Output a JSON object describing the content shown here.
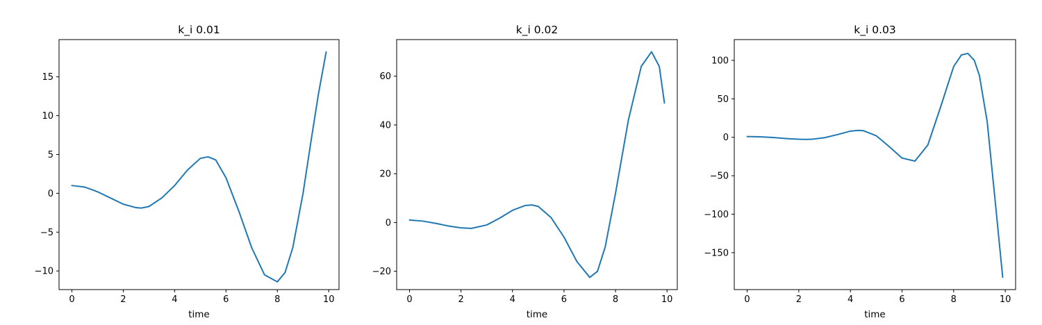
{
  "figure": {
    "line_color": "#1f77b4"
  },
  "chart_data": [
    {
      "type": "line",
      "title": "k_i 0.01",
      "xlabel": "time",
      "ylabel": "",
      "xlim": [
        -0.5,
        10.4
      ],
      "ylim": [
        -12.4,
        19.8
      ],
      "xticks": [
        0,
        2,
        4,
        6,
        8,
        10
      ],
      "yticks": [
        -10,
        -5,
        0,
        5,
        10,
        15
      ],
      "grid": false,
      "series": [
        {
          "x": [
            0,
            0.5,
            1,
            1.5,
            2,
            2.5,
            2.7,
            3,
            3.5,
            4,
            4.5,
            5,
            5.3,
            5.6,
            6,
            6.5,
            7,
            7.5,
            8,
            8.3,
            8.6,
            9,
            9.3,
            9.6,
            9.9
          ],
          "y": [
            1.0,
            0.8,
            0.2,
            -0.6,
            -1.4,
            -1.85,
            -1.9,
            -1.7,
            -0.6,
            1.0,
            3.0,
            4.5,
            4.7,
            4.3,
            2.0,
            -2.3,
            -7.0,
            -10.5,
            -11.4,
            -10.2,
            -7.0,
            0.0,
            6.5,
            12.8,
            18.2
          ]
        }
      ]
    },
    {
      "type": "line",
      "title": "k_i 0.02",
      "xlabel": "time",
      "ylabel": "",
      "xlim": [
        -0.5,
        10.4
      ],
      "ylim": [
        -27.5,
        75.0
      ],
      "xticks": [
        0,
        2,
        4,
        6,
        8,
        10
      ],
      "yticks": [
        -20,
        0,
        20,
        40,
        60
      ],
      "grid": false,
      "series": [
        {
          "x": [
            0,
            0.5,
            1,
            1.5,
            2,
            2.4,
            3,
            3.5,
            4,
            4.5,
            4.75,
            5,
            5.5,
            6,
            6.5,
            7,
            7.3,
            7.6,
            8,
            8.5,
            9,
            9.4,
            9.7,
            9.9
          ],
          "y": [
            1.0,
            0.6,
            -0.3,
            -1.4,
            -2.2,
            -2.4,
            -1.0,
            1.8,
            5.0,
            7.0,
            7.2,
            6.6,
            2.0,
            -6.0,
            -16.0,
            -22.5,
            -20.0,
            -10.0,
            12.0,
            42.0,
            64.0,
            70.0,
            64.0,
            49.0
          ]
        }
      ]
    },
    {
      "type": "line",
      "title": "k_i 0.03",
      "xlabel": "time",
      "ylabel": "",
      "xlim": [
        -0.5,
        10.4
      ],
      "ylim": [
        -198.0,
        127.0
      ],
      "xticks": [
        0,
        2,
        4,
        6,
        8,
        10
      ],
      "yticks": [
        -150,
        -100,
        -50,
        0,
        50,
        100
      ],
      "grid": false,
      "series": [
        {
          "x": [
            0,
            0.5,
            1,
            1.5,
            2,
            2.3,
            2.5,
            3,
            3.5,
            4,
            4.3,
            4.5,
            5,
            5.5,
            6,
            6.5,
            7,
            7.5,
            8,
            8.3,
            8.55,
            8.8,
            9,
            9.3,
            9.6,
            9.9
          ],
          "y": [
            1.0,
            0.6,
            -0.3,
            -1.6,
            -2.6,
            -2.8,
            -2.6,
            -0.5,
            3.5,
            8.0,
            9.0,
            8.6,
            2.0,
            -12.0,
            -27.0,
            -31.0,
            -10.0,
            40.0,
            92.0,
            107.0,
            109.0,
            100.0,
            80.0,
            20.0,
            -80.0,
            -182.0
          ]
        }
      ]
    }
  ]
}
